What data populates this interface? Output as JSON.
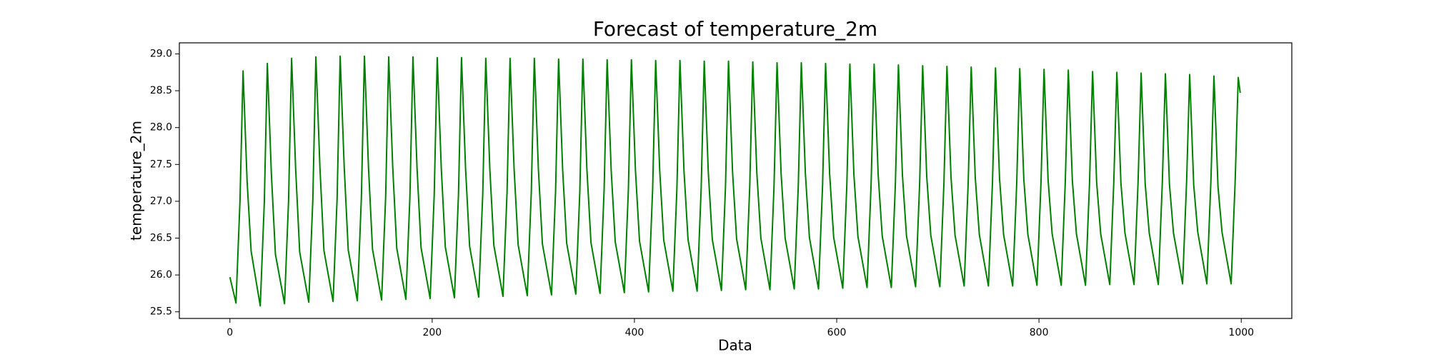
{
  "chart_data": {
    "type": "line",
    "title": "Forecast of temperature_2m",
    "xlabel": "Data",
    "ylabel": "temperature_2m",
    "xlim": [
      -50,
      1050
    ],
    "ylim": [
      25.41,
      29.15
    ],
    "xticks": [
      0,
      200,
      400,
      600,
      800,
      1000
    ],
    "yticks": [
      {
        "value": 25.5,
        "label": "25.5"
      },
      {
        "value": 26,
        "label": "26.0"
      },
      {
        "value": 26.5,
        "label": "26.5"
      },
      {
        "value": 27,
        "label": "27.0"
      },
      {
        "value": 27.5,
        "label": "27.5"
      },
      {
        "value": 28,
        "label": "28.0"
      },
      {
        "value": 28.5,
        "label": "28.5"
      },
      {
        "value": 29,
        "label": "29.0"
      }
    ],
    "series": [
      {
        "name": "temperature_2m",
        "color": "#008000",
        "x": [
          0,
          6,
          10,
          13,
          17,
          21,
          30,
          34,
          37,
          41,
          45,
          54,
          58,
          61,
          65,
          69,
          78,
          82,
          85,
          89,
          93,
          102,
          106,
          109,
          113,
          117,
          126,
          130,
          133,
          137,
          141,
          150,
          154,
          157,
          161,
          165,
          174,
          178,
          181,
          185,
          189,
          198,
          202,
          205,
          209,
          213,
          222,
          226,
          229,
          233,
          237,
          246,
          250,
          253,
          257,
          261,
          270,
          274,
          277,
          281,
          285,
          294,
          298,
          301,
          305,
          309,
          318,
          322,
          325,
          329,
          333,
          342,
          346,
          349,
          353,
          357,
          366,
          370,
          373,
          377,
          381,
          390,
          394,
          397,
          401,
          405,
          414,
          418,
          421,
          425,
          429,
          438,
          442,
          445,
          449,
          453,
          462,
          466,
          469,
          473,
          477,
          486,
          490,
          493,
          497,
          501,
          510,
          514,
          517,
          521,
          525,
          534,
          538,
          541,
          545,
          549,
          558,
          562,
          565,
          569,
          573,
          582,
          586,
          589,
          593,
          597,
          606,
          610,
          613,
          617,
          621,
          630,
          634,
          637,
          641,
          645,
          654,
          658,
          661,
          665,
          669,
          678,
          682,
          685,
          689,
          693,
          702,
          706,
          709,
          713,
          717,
          726,
          730,
          733,
          737,
          741,
          750,
          754,
          757,
          761,
          765,
          774,
          778,
          781,
          785,
          789,
          798,
          802,
          805,
          809,
          813,
          822,
          826,
          829,
          833,
          837,
          846,
          850,
          853,
          857,
          861,
          870,
          874,
          877,
          881,
          885,
          894,
          898,
          901,
          905,
          909,
          918,
          922,
          925,
          929,
          933,
          942,
          946,
          949,
          953,
          957,
          966,
          970,
          973,
          977,
          981,
          990,
          994,
          997,
          999
        ],
        "values": [
          25.97,
          25.62,
          27.02,
          28.77,
          27.27,
          26.32,
          25.58,
          26.98,
          28.87,
          27.37,
          26.28,
          25.61,
          27.01,
          28.94,
          27.44,
          26.31,
          25.63,
          27.03,
          28.96,
          27.46,
          26.33,
          25.64,
          27.04,
          28.97,
          27.47,
          26.34,
          25.65,
          27.05,
          28.97,
          27.47,
          26.35,
          25.66,
          27.06,
          28.96,
          27.46,
          26.36,
          25.67,
          27.07,
          28.96,
          27.46,
          26.37,
          25.68,
          27.08,
          28.95,
          27.45,
          26.38,
          25.69,
          27.09,
          28.95,
          27.45,
          26.39,
          25.7,
          27.1,
          28.94,
          27.44,
          26.4,
          25.71,
          27.11,
          28.94,
          27.44,
          26.41,
          25.72,
          27.12,
          28.94,
          27.44,
          26.42,
          25.73,
          27.13,
          28.93,
          27.43,
          26.43,
          25.74,
          27.14,
          28.93,
          27.43,
          26.44,
          25.75,
          27.15,
          28.92,
          27.42,
          26.45,
          25.76,
          27.16,
          28.92,
          27.42,
          26.46,
          25.77,
          27.17,
          28.91,
          27.41,
          26.47,
          25.78,
          27.18,
          28.91,
          27.41,
          26.48,
          25.78,
          27.18,
          28.9,
          27.4,
          26.48,
          25.79,
          27.19,
          28.9,
          27.4,
          26.49,
          25.8,
          27.2,
          28.89,
          27.39,
          26.5,
          25.8,
          27.2,
          28.88,
          27.38,
          26.5,
          25.81,
          27.21,
          28.88,
          27.38,
          26.51,
          25.81,
          27.21,
          28.87,
          27.37,
          26.51,
          25.82,
          27.22,
          28.86,
          27.36,
          26.52,
          25.83,
          27.23,
          28.86,
          27.36,
          26.53,
          25.83,
          27.23,
          28.85,
          27.35,
          26.53,
          25.84,
          27.24,
          28.84,
          27.34,
          26.54,
          25.84,
          27.24,
          28.83,
          27.33,
          26.54,
          25.85,
          27.25,
          28.82,
          27.32,
          26.55,
          25.85,
          27.25,
          28.81,
          27.31,
          26.55,
          25.85,
          27.25,
          28.8,
          27.3,
          26.55,
          25.86,
          27.26,
          28.79,
          27.29,
          26.56,
          25.86,
          27.26,
          28.78,
          27.28,
          26.56,
          25.86,
          27.26,
          28.76,
          27.26,
          26.56,
          25.87,
          27.27,
          28.75,
          27.25,
          26.57,
          25.87,
          27.27,
          28.74,
          27.24,
          26.57,
          25.87,
          27.27,
          28.73,
          27.23,
          26.57,
          25.88,
          27.28,
          28.72,
          27.22,
          26.58,
          25.88,
          27.28,
          28.7,
          27.2,
          26.58,
          25.88,
          27.28,
          28.68,
          28.47
        ]
      }
    ]
  }
}
